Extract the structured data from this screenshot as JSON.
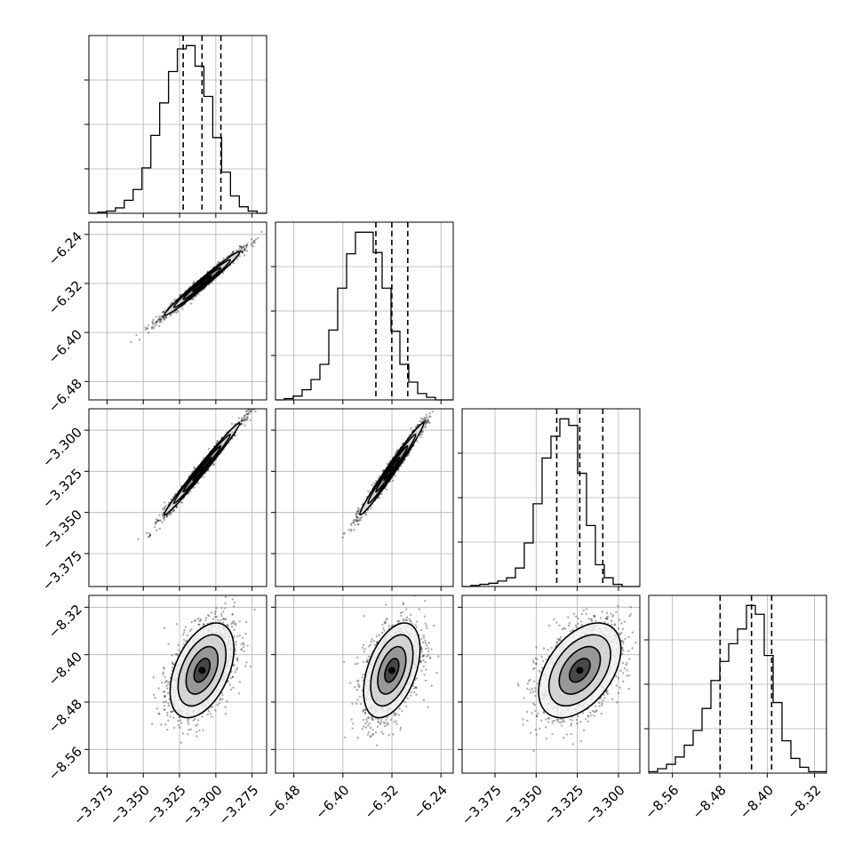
{
  "chart_data": {
    "type": "corner",
    "params": [
      {
        "range": [
          -3.3875,
          -3.265
        ],
        "ticks": [
          -3.375,
          -3.35,
          -3.325,
          -3.3,
          -3.275
        ],
        "tick_labels": [
          "−3.375",
          "−3.350",
          "−3.325",
          "−3.300",
          "−3.275"
        ]
      },
      {
        "range": [
          -6.51,
          -6.22
        ],
        "ticks": [
          -6.48,
          -6.4,
          -6.32,
          -6.24
        ],
        "tick_labels": [
          "−6.48",
          "−6.40",
          "−6.32",
          "−6.24"
        ]
      },
      {
        "range": [
          -3.395,
          -3.287
        ],
        "ticks": [
          -3.375,
          -3.35,
          -3.325,
          -3.3
        ],
        "tick_labels": [
          "−3.375",
          "−3.350",
          "−3.325",
          "−3.300"
        ]
      },
      {
        "range": [
          -8.6,
          -8.3
        ],
        "ticks": [
          -8.56,
          -8.48,
          -8.4,
          -8.32
        ],
        "tick_labels": [
          "−8.56",
          "−8.48",
          "−8.40",
          "−8.32"
        ]
      }
    ],
    "row_tick_labels": [
      null,
      {
        "ticks": [
          -6.48,
          -6.4,
          -6.32,
          -6.24
        ],
        "labels": [
          "−6.48",
          "−6.40",
          "−6.32",
          "−6.24"
        ]
      },
      {
        "ticks": [
          -3.375,
          -3.35,
          -3.325,
          -3.3
        ],
        "labels": [
          "−3.375",
          "−3.350",
          "−3.325",
          "−3.300"
        ]
      },
      {
        "ticks": [
          -8.56,
          -8.48,
          -8.4,
          -8.32
        ],
        "labels": [
          "−8.56",
          "−8.48",
          "−8.40",
          "−8.32"
        ]
      }
    ],
    "histograms": [
      {
        "edges_start": -3.3875,
        "bin_width": 0.0061,
        "counts": [
          0,
          1,
          2,
          5,
          12,
          22,
          42,
          72,
          102,
          131,
          152,
          155,
          136,
          108,
          70,
          38,
          16,
          6,
          2,
          0
        ],
        "quantiles": [
          -3.3225,
          -3.3095,
          -3.2965
        ]
      },
      {
        "edges_start": -6.51,
        "bin_width": 0.0145,
        "counts": [
          0,
          1,
          3,
          8,
          16,
          28,
          55,
          88,
          115,
          132,
          132,
          116,
          88,
          54,
          28,
          14,
          5,
          2,
          0,
          0
        ],
        "quantiles": [
          -6.3462,
          -6.3202,
          -6.2942
        ]
      },
      {
        "edges_start": -3.395,
        "bin_width": 0.0054,
        "counts": [
          0,
          1,
          2,
          3,
          5,
          8,
          17,
          40,
          76,
          118,
          138,
          154,
          148,
          104,
          56,
          20,
          8,
          2,
          0,
          0
        ],
        "quantiles": [
          -3.3375,
          -3.3235,
          -3.3095
        ]
      },
      {
        "edges_start": -8.6,
        "bin_width": 0.015,
        "counts": [
          1,
          3,
          6,
          11,
          19,
          29,
          44,
          63,
          76,
          88,
          98,
          114,
          108,
          80,
          48,
          22,
          10,
          4,
          1,
          1
        ],
        "quantiles": [
          -8.4795,
          -8.4265,
          -8.3925
        ]
      }
    ],
    "pairs": [
      {
        "row": 1,
        "col": 0,
        "mean": [
          -3.3095,
          -6.3202
        ],
        "sd": [
          0.013,
          0.026
        ],
        "corr": 0.985
      },
      {
        "row": 2,
        "col": 0,
        "mean": [
          -3.3095,
          -3.3235
        ],
        "sd": [
          0.013,
          0.014
        ],
        "corr": 0.99
      },
      {
        "row": 2,
        "col": 1,
        "mean": [
          -6.3202,
          -3.3235
        ],
        "sd": [
          0.026,
          0.014
        ],
        "corr": 0.985
      },
      {
        "row": 3,
        "col": 0,
        "mean": [
          -3.3095,
          -8.4265
        ],
        "sd": [
          0.011,
          0.04
        ],
        "corr": 0.45
      },
      {
        "row": 3,
        "col": 1,
        "mean": [
          -6.3202,
          -8.4265
        ],
        "sd": [
          0.023,
          0.04
        ],
        "corr": 0.45
      },
      {
        "row": 3,
        "col": 2,
        "mean": [
          -3.3235,
          -8.4265
        ],
        "sd": [
          0.0125,
          0.04
        ],
        "corr": 0.45
      }
    ],
    "contour_levels_sigma": [
      0.5,
      1.0,
      1.5,
      2.0
    ],
    "grid": true
  }
}
